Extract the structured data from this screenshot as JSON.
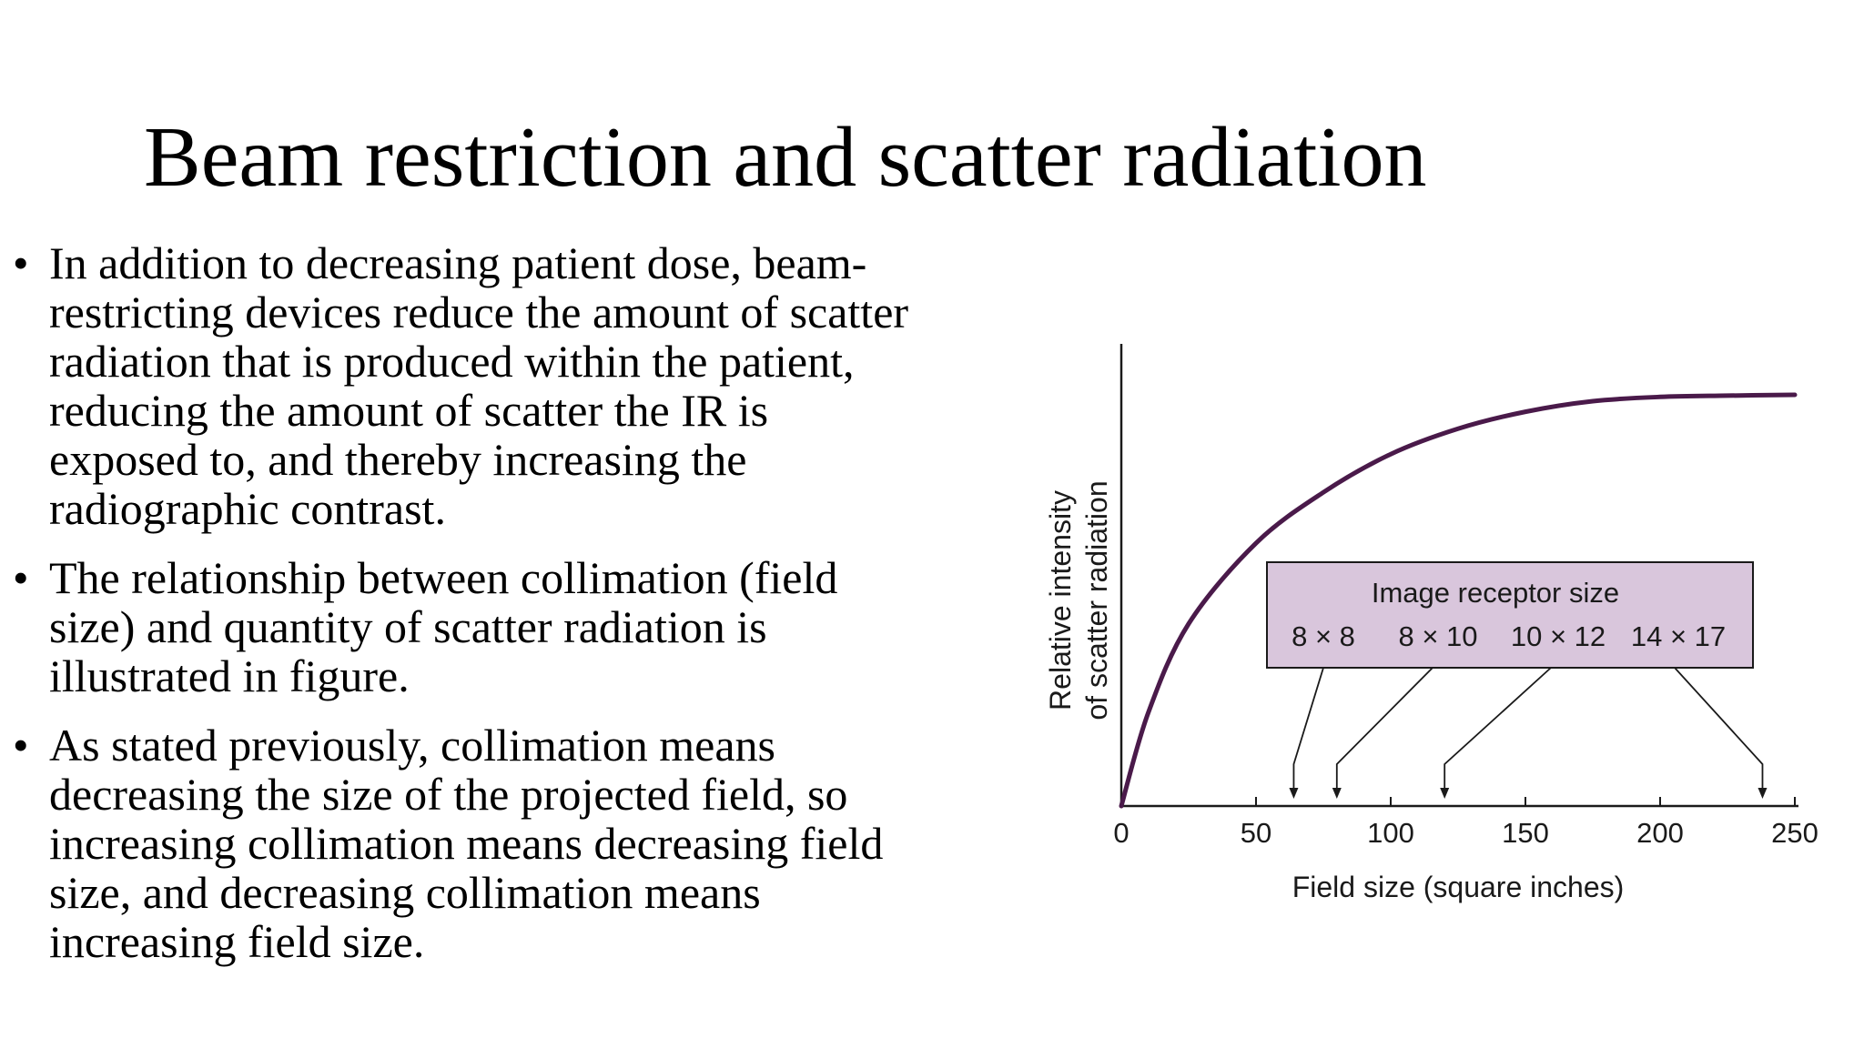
{
  "slide": {
    "title": "Beam restriction and scatter radiation",
    "bullet_symbol": "•",
    "bullets": [
      {
        "lines": [
          "In addition to decreasing patient dose, beam-",
          "restricting devices reduce the amount of scatter",
          "radiation that is produced within the patient,",
          "reducing the amount of scatter the IR is",
          "exposed to, and thereby increasing the",
          "radiographic contrast."
        ]
      },
      {
        "lines": [
          " The relationship between collimation (field",
          "size) and quantity of scatter radiation is",
          "illustrated in figure."
        ]
      },
      {
        "lines": [
          "As stated previously, collimation means",
          "decreasing the size of the projected field, so",
          "increasing collimation means decreasing field",
          "size, and decreasing collimation means",
          "increasing field size."
        ]
      }
    ]
  },
  "chart_data": {
    "type": "line",
    "title": "",
    "xlabel": "Field size (square inches)",
    "ylabel_lines": [
      "Relative intensity",
      "of scatter radiation"
    ],
    "xlim": [
      0,
      250
    ],
    "ylim": [
      0,
      1
    ],
    "x_ticks": [
      0,
      50,
      100,
      150,
      200,
      250
    ],
    "x_tick_labels": [
      "0",
      "50",
      "100",
      "150",
      "200",
      "250"
    ],
    "y_ticks_labeled": false,
    "grid": false,
    "series": [
      {
        "color": "#4a1a4a",
        "x": [
          0,
          10,
          25,
          50,
          75,
          100,
          125,
          150,
          175,
          200,
          225,
          250
        ],
        "y": [
          0,
          0.22,
          0.43,
          0.62,
          0.74,
          0.83,
          0.89,
          0.93,
          0.955,
          0.965,
          0.968,
          0.97
        ]
      }
    ],
    "annotation_box": {
      "title": "Image receptor size",
      "fill": "#d9c6dc",
      "entries": [
        {
          "label": "8 × 8",
          "x": 64
        },
        {
          "label": "8 × 10",
          "x": 80
        },
        {
          "label": "10 × 12",
          "x": 120
        },
        {
          "label": "14 × 17",
          "x": 238
        }
      ]
    }
  }
}
